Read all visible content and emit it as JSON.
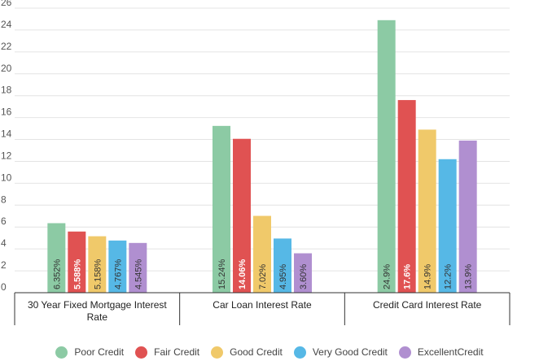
{
  "chart_data": {
    "type": "bar",
    "title": "",
    "xlabel": "",
    "ylabel": "",
    "ylim": [
      0,
      26
    ],
    "yticks": [
      0,
      2,
      4,
      6,
      8,
      10,
      12,
      14,
      16,
      18,
      20,
      22,
      24,
      26
    ],
    "grid": true,
    "legend_position": "bottom",
    "categories": [
      "30 Year Fixed Mortgage Interest Rate",
      "Car Loan Interest Rate",
      "Credit Card Interest Rate"
    ],
    "series": [
      {
        "name": "Poor Credit",
        "color": "#8ccaa4",
        "values": [
          6.352,
          15.24,
          24.9
        ],
        "labels": [
          "6.352%",
          "15.24%",
          "24.9%"
        ]
      },
      {
        "name": "Fair Credit",
        "color": "#e05252",
        "values": [
          5.588,
          14.06,
          17.6
        ],
        "labels": [
          "5.588%",
          "14.06%",
          "17.6%"
        ]
      },
      {
        "name": "Good Credit",
        "color": "#f0c96a",
        "values": [
          5.158,
          7.02,
          14.9
        ],
        "labels": [
          "5.158%",
          "7.02%",
          "14.9%"
        ]
      },
      {
        "name": "Very Good Credit",
        "color": "#56b8e6",
        "values": [
          4.767,
          4.95,
          12.2
        ],
        "labels": [
          "4.767%",
          "4.95%",
          "12.2%"
        ]
      },
      {
        "name": "ExcellentCredit",
        "color": "#b08fd0",
        "values": [
          4.545,
          3.6,
          13.9
        ],
        "labels": [
          "4.545%",
          "3.60%",
          "13.9%"
        ]
      }
    ],
    "category_label_lines": [
      [
        "30 Year Fixed Mortgage Interest",
        "Rate"
      ],
      [
        "Car Loan Interest Rate"
      ],
      [
        "Credit Card Interest Rate"
      ]
    ]
  }
}
